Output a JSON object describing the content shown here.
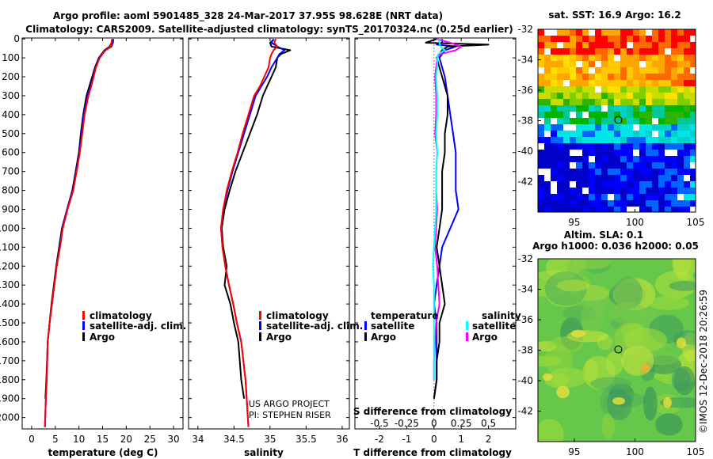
{
  "header": {
    "line1": "Argo profile: aoml 5901485_328 24-Mar-2017 37.95S 98.628E (NRT data)",
    "line2": "Climatology: CARS2009. Satellite-adjusted climatology: synTS_20170324.nc (0.25d earlier)"
  },
  "colors": {
    "climatology": "#ff0000",
    "satellite": "#0000ff",
    "argo": "#000000",
    "sat_salinity": "#00ffff",
    "argo_salinity": "#ff00ff"
  },
  "depth_axis": {
    "ticks": [
      "0",
      "100",
      "200",
      "300",
      "400",
      "500",
      "600",
      "700",
      "800",
      "900",
      "1000",
      "1100",
      "1200",
      "1300",
      "1400",
      "1500",
      "1600",
      "1700",
      "1800",
      "1900",
      "2000"
    ],
    "range": [
      -5,
      2060
    ]
  },
  "chart_data": [
    {
      "type": "line",
      "name": "temperature",
      "xlabel": "temperature (deg C)",
      "xlim": [
        -2,
        32
      ],
      "xticks": [
        "0",
        "5",
        "10",
        "15",
        "20",
        "25",
        "30"
      ],
      "ylim": [
        2060,
        -5
      ],
      "legend": [
        "climatology",
        "satellite-adj. clim.",
        "Argo"
      ],
      "series": [
        {
          "name": "climatology",
          "x": [
            17.0,
            16.9,
            16.7,
            15.6,
            15.0,
            14.4,
            13.6,
            13.1,
            12.6,
            12.0,
            11.2,
            10.7,
            10.2,
            9.5,
            8.8,
            7.6,
            6.6,
            6.0,
            5.3,
            4.8,
            4.3,
            3.8,
            3.4,
            3.2,
            3.0,
            2.8
          ],
          "y": [
            0,
            20,
            40,
            60,
            80,
            100,
            150,
            200,
            250,
            300,
            400,
            500,
            600,
            700,
            800,
            900,
            1000,
            1100,
            1200,
            1300,
            1400,
            1500,
            1600,
            1800,
            1900,
            2050
          ]
        },
        {
          "name": "satellite-adj. clim.",
          "x": [
            17.3,
            17.2,
            16.9,
            15.6,
            14.8,
            14.3,
            13.5,
            13.0,
            12.4,
            11.8,
            11.0,
            10.5,
            10.1,
            9.4,
            8.7,
            7.5,
            6.5,
            5.9,
            5.3,
            4.8,
            4.3,
            3.8,
            3.4,
            3.2,
            3.0,
            2.8
          ],
          "y": [
            0,
            20,
            40,
            60,
            80,
            100,
            150,
            200,
            250,
            300,
            400,
            500,
            600,
            700,
            800,
            900,
            1000,
            1100,
            1200,
            1300,
            1400,
            1500,
            1600,
            1800,
            1900,
            2050
          ]
        },
        {
          "name": "Argo",
          "x": [
            17.0,
            16.9,
            16.5,
            15.4,
            14.8,
            14.2,
            13.4,
            12.8,
            12.2,
            11.6,
            10.9,
            10.4,
            10.0,
            9.3,
            8.6,
            7.5,
            6.4,
            5.8,
            5.2,
            4.7,
            4.2,
            3.8,
            3.4,
            3.1,
            2.9
          ],
          "y": [
            5,
            20,
            40,
            60,
            80,
            100,
            150,
            200,
            250,
            300,
            400,
            500,
            600,
            700,
            800,
            900,
            1000,
            1100,
            1200,
            1300,
            1400,
            1500,
            1600,
            1800,
            1900
          ]
        }
      ]
    },
    {
      "type": "line",
      "name": "salinity",
      "xlabel": "salinity",
      "xlim": [
        33.87,
        36.1
      ],
      "xticks": [
        "34",
        "34.5",
        "35",
        "35.5",
        "36"
      ],
      "ylim": [
        2060,
        -5
      ],
      "legend": [
        "climatology",
        "satellite-adj. clim.",
        "Argo"
      ],
      "series": [
        {
          "name": "climatology",
          "x": [
            35.08,
            35.06,
            35.1,
            35.05,
            35.02,
            35.0,
            34.98,
            34.92,
            34.86,
            34.78,
            34.7,
            34.62,
            34.55,
            34.47,
            34.4,
            34.35,
            34.32,
            34.34,
            34.38,
            34.43,
            34.49,
            34.54,
            34.6,
            34.66,
            34.7
          ],
          "y": [
            0,
            20,
            40,
            60,
            80,
            100,
            150,
            200,
            250,
            300,
            400,
            500,
            600,
            700,
            800,
            900,
            1000,
            1100,
            1200,
            1300,
            1400,
            1500,
            1600,
            1800,
            2050
          ]
        },
        {
          "name": "satellite-adj. clim.",
          "x": [
            35.05,
            35.02,
            35.1,
            35.2,
            35.13,
            35.1,
            35.02,
            34.96,
            34.88,
            34.8,
            34.72,
            34.64,
            34.56,
            34.48,
            34.41,
            34.35,
            34.32,
            34.34,
            34.38,
            34.43,
            34.49,
            34.54,
            34.6,
            34.66,
            34.7
          ],
          "y": [
            0,
            20,
            40,
            60,
            80,
            100,
            150,
            200,
            250,
            300,
            400,
            500,
            600,
            700,
            800,
            900,
            1000,
            1100,
            1200,
            1300,
            1400,
            1500,
            1600,
            1800,
            2050
          ]
        },
        {
          "name": "Argo",
          "x": [
            35.05,
            35.0,
            35.02,
            35.28,
            35.15,
            35.1,
            35.08,
            35.02,
            34.96,
            34.9,
            34.82,
            34.72,
            34.62,
            34.52,
            34.44,
            34.37,
            34.33,
            34.35,
            34.4,
            34.37,
            34.45,
            34.5,
            34.56,
            34.6,
            34.64
          ],
          "y": [
            5,
            20,
            40,
            60,
            80,
            100,
            150,
            200,
            250,
            300,
            400,
            500,
            600,
            700,
            800,
            900,
            1000,
            1100,
            1200,
            1300,
            1400,
            1500,
            1600,
            1800,
            1900
          ]
        }
      ],
      "annotations": [
        "US ARGO PROJECT",
        "PI: STEPHEN RISER"
      ]
    },
    {
      "type": "line",
      "name": "difference from climatology",
      "xlabel": "T difference from climatology",
      "xlim": [
        -2.9,
        3.0
      ],
      "xticks": [
        "-2",
        "-1",
        "0",
        "1",
        "2"
      ],
      "secondary_axis_label": "S difference from climatology",
      "secondary_xticks": [
        "-0.5",
        "-0.25",
        "0",
        "0.25",
        "0.5"
      ],
      "ylim": [
        2060,
        -5
      ],
      "legend": {
        "temperature_title": "temperature",
        "salinity_title": "salinity",
        "items": [
          "satellite",
          "Argo",
          "satellite",
          "Argo"
        ]
      },
      "series": [
        {
          "name": "T satellite",
          "x": [
            0.3,
            0.3,
            0.1,
            0.8,
            0.4,
            0.2,
            0.3,
            0.4,
            0.5,
            0.6,
            0.7,
            0.8,
            0.8,
            0.8,
            0.9,
            0.6,
            0.3,
            0.2,
            0.1,
            0.0,
            0.1,
            0.1,
            0.1,
            0.1,
            0.0
          ],
          "y": [
            0,
            20,
            30,
            40,
            60,
            100,
            150,
            200,
            300,
            400,
            500,
            600,
            700,
            800,
            900,
            1000,
            1100,
            1200,
            1300,
            1400,
            1500,
            1600,
            1700,
            1800,
            1900
          ]
        },
        {
          "name": "T Argo",
          "x": [
            0.1,
            -0.3,
            2.0,
            0.5,
            0.3,
            0.1,
            0.2,
            0.3,
            0.5,
            0.5,
            0.4,
            0.4,
            0.3,
            0.3,
            0.3,
            0.2,
            0.1,
            0.2,
            0.3,
            0.4,
            0.2,
            0.2,
            0.1,
            0.1,
            0.0
          ],
          "y": [
            0,
            20,
            30,
            40,
            60,
            100,
            150,
            200,
            300,
            400,
            500,
            600,
            700,
            800,
            900,
            1000,
            1100,
            1200,
            1300,
            1400,
            1500,
            1600,
            1700,
            1800,
            1900
          ]
        },
        {
          "name": "S satellite",
          "x": [
            0.04,
            0.05,
            0.06,
            0.1,
            0.04,
            0.03,
            0.03,
            0.02,
            0.03,
            0.03,
            0.02,
            0.03,
            0.02,
            0.02,
            0.02,
            0.01,
            0.0,
            -0.01,
            0.0,
            0.0,
            0.0,
            0.0,
            0.0,
            0.0
          ],
          "y": [
            0,
            20,
            40,
            60,
            80,
            100,
            150,
            200,
            300,
            400,
            500,
            600,
            700,
            800,
            900,
            1000,
            1100,
            1200,
            1300,
            1400,
            1500,
            1600,
            1700,
            1800
          ]
        },
        {
          "name": "S Argo",
          "x": [
            0.02,
            0.15,
            0.25,
            0.2,
            0.06,
            0.03,
            0.02,
            0.01,
            0.02,
            0.02,
            0.01,
            0.03,
            0.02,
            0.02,
            0.03,
            0.02,
            0.01,
            0.03,
            0.04,
            0.05,
            0.02,
            0.01,
            0.0,
            0.0
          ],
          "y": [
            0,
            20,
            40,
            60,
            80,
            100,
            150,
            200,
            300,
            400,
            500,
            600,
            700,
            800,
            900,
            1000,
            1100,
            1200,
            1300,
            1400,
            1500,
            1600,
            1700,
            1800
          ]
        }
      ]
    },
    {
      "type": "heatmap",
      "name": "sst map",
      "title": "sat. SST: 16.9 Argo: 16.2",
      "xticks": [
        "95",
        "100",
        "105"
      ],
      "yticks": [
        "-32",
        "-34",
        "-36",
        "-38",
        "-40",
        "-42"
      ],
      "xlim": [
        92,
        105
      ],
      "ylim": [
        -44,
        -32
      ],
      "profile_location": [
        98.628,
        -37.95
      ]
    },
    {
      "type": "heatmap",
      "name": "sla map",
      "title_line1": "Altim. SLA: 0.1",
      "title_line2": "Argo h1000: 0.036 h2000: 0.05",
      "xticks": [
        "95",
        "100",
        "105"
      ],
      "yticks": [
        "-32",
        "-34",
        "-36",
        "-38",
        "-40",
        "-42"
      ],
      "xlim": [
        92,
        105
      ],
      "ylim": [
        -44,
        -32
      ],
      "profile_location": [
        98.628,
        -37.95
      ]
    }
  ],
  "watermark": "©IMOS 12-Dec-2018 20:26:59"
}
